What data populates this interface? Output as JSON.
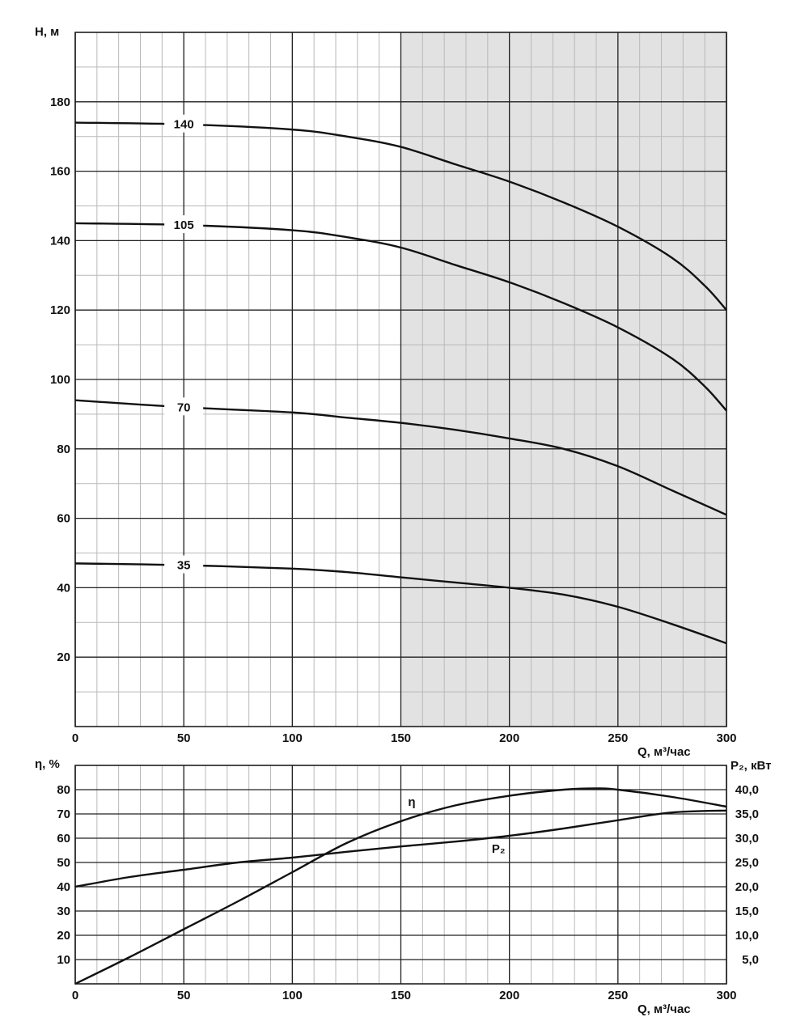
{
  "chart_data": [
    {
      "type": "line",
      "title": "",
      "ylabel": "H, м",
      "xlabel": "Q, м³/час",
      "xlim": [
        0,
        300
      ],
      "ylim": [
        0,
        200
      ],
      "x_ticks": [
        0,
        50,
        100,
        150,
        200,
        250,
        300
      ],
      "y_ticks": [
        20,
        40,
        60,
        80,
        100,
        120,
        140,
        160,
        180
      ],
      "grid": true,
      "shaded_range_x": [
        150,
        300
      ],
      "series": [
        {
          "name": "140",
          "x": [
            0,
            50,
            100,
            125,
            150,
            175,
            200,
            225,
            250,
            275,
            290,
            300
          ],
          "y": [
            174,
            173.5,
            172,
            170,
            167,
            162,
            157,
            151,
            144,
            135,
            127,
            120
          ]
        },
        {
          "name": "105",
          "x": [
            0,
            50,
            100,
            125,
            150,
            175,
            200,
            225,
            250,
            275,
            290,
            300
          ],
          "y": [
            145,
            144.5,
            143,
            141,
            138,
            133,
            128,
            122,
            115,
            106,
            98,
            91
          ]
        },
        {
          "name": "70",
          "x": [
            0,
            50,
            100,
            125,
            150,
            175,
            200,
            225,
            250,
            275,
            300
          ],
          "y": [
            94,
            92,
            90.5,
            89,
            87.5,
            85.5,
            83,
            80,
            75,
            68,
            61
          ]
        },
        {
          "name": "35",
          "x": [
            0,
            50,
            100,
            125,
            150,
            175,
            200,
            225,
            250,
            275,
            300
          ],
          "y": [
            47,
            46.5,
            45.5,
            44.5,
            43,
            41.5,
            40,
            38,
            34.5,
            29.5,
            24
          ]
        }
      ]
    },
    {
      "type": "line",
      "title": "",
      "ylabel_left": "η, %",
      "ylabel_right": "P₂, кВт",
      "xlabel": "Q, м³/час",
      "xlim": [
        0,
        300
      ],
      "ylim_left": [
        0,
        90
      ],
      "ylim_right": [
        0,
        45
      ],
      "x_ticks": [
        0,
        50,
        100,
        150,
        200,
        250,
        300
      ],
      "y_ticks_left": [
        10,
        20,
        30,
        40,
        50,
        60,
        70,
        80
      ],
      "y_ticks_right": [
        "5,0",
        "10,0",
        "15,0",
        "20,0",
        "25,0",
        "30,0",
        "35,0",
        "40,0"
      ],
      "y_tick_values_right": [
        5,
        10,
        15,
        20,
        25,
        30,
        35,
        40
      ],
      "grid": true,
      "series": [
        {
          "name": "η",
          "axis": "left",
          "x": [
            0,
            25,
            50,
            75,
            100,
            125,
            150,
            175,
            200,
            225,
            240,
            250,
            275,
            300
          ],
          "y": [
            0,
            11,
            22.5,
            34,
            46,
            58,
            67,
            73.5,
            77.5,
            80,
            80.5,
            80,
            77,
            73
          ]
        },
        {
          "name": "P₂",
          "axis": "right",
          "x": [
            0,
            25,
            50,
            75,
            100,
            125,
            150,
            175,
            200,
            225,
            250,
            275,
            300
          ],
          "y": [
            20,
            22,
            23.5,
            25,
            26,
            27.2,
            28.3,
            29.3,
            30.5,
            32,
            33.7,
            35.3,
            35.7
          ]
        }
      ]
    }
  ]
}
